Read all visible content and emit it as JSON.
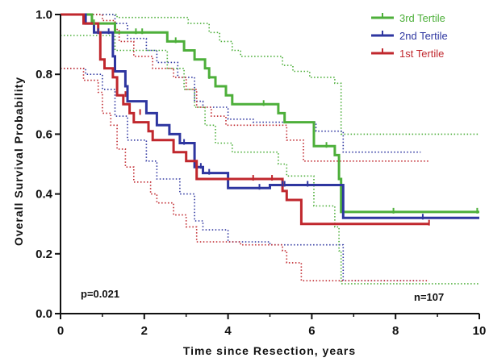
{
  "chart_data": {
    "type": "line",
    "subtype": "kaplan-meier-step",
    "title": "",
    "xlabel": "Time since Resection, years",
    "ylabel": "Overall Survival Probability",
    "xlim": [
      0,
      10
    ],
    "ylim": [
      0,
      1
    ],
    "xticks": [
      "0",
      "2",
      "4",
      "6",
      "8",
      "10"
    ],
    "yticks": [
      "0.0",
      "0.2",
      "0.4",
      "0.6",
      "0.8",
      "1.0"
    ],
    "grid": false,
    "legend_position": "top-right",
    "annotations": {
      "pvalue": "p=0.021",
      "n": "n=107"
    },
    "series": [
      {
        "name": "3rd Tertile",
        "color": "#4daf3a",
        "survival": [
          [
            0,
            1.0
          ],
          [
            0.75,
            1.0
          ],
          [
            0.75,
            0.97
          ],
          [
            1.3,
            0.97
          ],
          [
            1.3,
            0.94
          ],
          [
            2.55,
            0.94
          ],
          [
            2.55,
            0.91
          ],
          [
            2.95,
            0.91
          ],
          [
            2.95,
            0.88
          ],
          [
            3.2,
            0.88
          ],
          [
            3.2,
            0.85
          ],
          [
            3.45,
            0.85
          ],
          [
            3.45,
            0.82
          ],
          [
            3.55,
            0.82
          ],
          [
            3.55,
            0.79
          ],
          [
            3.7,
            0.79
          ],
          [
            3.7,
            0.76
          ],
          [
            3.95,
            0.76
          ],
          [
            3.95,
            0.73
          ],
          [
            4.1,
            0.73
          ],
          [
            4.1,
            0.7
          ],
          [
            5.2,
            0.7
          ],
          [
            5.2,
            0.67
          ],
          [
            5.35,
            0.67
          ],
          [
            5.35,
            0.64
          ],
          [
            6.05,
            0.64
          ],
          [
            6.05,
            0.56
          ],
          [
            6.55,
            0.56
          ],
          [
            6.55,
            0.53
          ],
          [
            6.65,
            0.53
          ],
          [
            6.65,
            0.45
          ],
          [
            6.7,
            0.45
          ],
          [
            6.7,
            0.34
          ],
          [
            10,
            0.34
          ]
        ],
        "ci_upper": [
          [
            0,
            1.0
          ],
          [
            1.35,
            1.0
          ],
          [
            1.35,
            0.99
          ],
          [
            3.05,
            0.99
          ],
          [
            3.05,
            0.97
          ],
          [
            3.55,
            0.97
          ],
          [
            3.55,
            0.94
          ],
          [
            3.8,
            0.94
          ],
          [
            3.8,
            0.91
          ],
          [
            4.1,
            0.91
          ],
          [
            4.1,
            0.88
          ],
          [
            4.3,
            0.88
          ],
          [
            4.3,
            0.86
          ],
          [
            5.3,
            0.86
          ],
          [
            5.3,
            0.83
          ],
          [
            5.55,
            0.83
          ],
          [
            5.55,
            0.81
          ],
          [
            5.95,
            0.81
          ],
          [
            5.95,
            0.79
          ],
          [
            6.55,
            0.79
          ],
          [
            6.55,
            0.77
          ],
          [
            6.7,
            0.77
          ],
          [
            6.7,
            0.6
          ],
          [
            10,
            0.6
          ]
        ],
        "ci_lower": [
          [
            0,
            0.93
          ],
          [
            1.3,
            0.93
          ],
          [
            1.3,
            0.88
          ],
          [
            2.55,
            0.88
          ],
          [
            2.55,
            0.82
          ],
          [
            2.95,
            0.82
          ],
          [
            2.95,
            0.75
          ],
          [
            3.2,
            0.75
          ],
          [
            3.2,
            0.69
          ],
          [
            3.45,
            0.69
          ],
          [
            3.45,
            0.63
          ],
          [
            3.7,
            0.63
          ],
          [
            3.7,
            0.57
          ],
          [
            4.1,
            0.57
          ],
          [
            4.1,
            0.54
          ],
          [
            5.2,
            0.54
          ],
          [
            5.2,
            0.5
          ],
          [
            5.4,
            0.5
          ],
          [
            5.4,
            0.46
          ],
          [
            6.05,
            0.46
          ],
          [
            6.05,
            0.36
          ],
          [
            6.55,
            0.36
          ],
          [
            6.55,
            0.29
          ],
          [
            6.65,
            0.29
          ],
          [
            6.65,
            0.21
          ],
          [
            6.7,
            0.21
          ],
          [
            6.7,
            0.1
          ],
          [
            10,
            0.1
          ]
        ]
      },
      {
        "name": "2nd Tertile",
        "color": "#2e36a0",
        "survival": [
          [
            0,
            1.0
          ],
          [
            0.6,
            1.0
          ],
          [
            0.6,
            0.97
          ],
          [
            0.8,
            0.97
          ],
          [
            0.8,
            0.94
          ],
          [
            1.25,
            0.94
          ],
          [
            1.25,
            0.86
          ],
          [
            1.3,
            0.86
          ],
          [
            1.3,
            0.81
          ],
          [
            1.55,
            0.81
          ],
          [
            1.55,
            0.76
          ],
          [
            1.6,
            0.76
          ],
          [
            1.6,
            0.71
          ],
          [
            2.05,
            0.71
          ],
          [
            2.05,
            0.67
          ],
          [
            2.3,
            0.67
          ],
          [
            2.3,
            0.63
          ],
          [
            2.6,
            0.63
          ],
          [
            2.6,
            0.6
          ],
          [
            2.85,
            0.6
          ],
          [
            2.85,
            0.57
          ],
          [
            3.2,
            0.57
          ],
          [
            3.2,
            0.49
          ],
          [
            3.4,
            0.49
          ],
          [
            3.4,
            0.47
          ],
          [
            4.0,
            0.47
          ],
          [
            4.0,
            0.42
          ],
          [
            5.0,
            0.42
          ],
          [
            5.0,
            0.43
          ],
          [
            6.75,
            0.43
          ],
          [
            6.75,
            0.32
          ],
          [
            10,
            0.32
          ]
        ],
        "ci_upper": [
          [
            0,
            1.0
          ],
          [
            1.3,
            1.0
          ],
          [
            1.3,
            0.97
          ],
          [
            1.6,
            0.97
          ],
          [
            1.6,
            0.92
          ],
          [
            2.05,
            0.92
          ],
          [
            2.05,
            0.88
          ],
          [
            2.3,
            0.88
          ],
          [
            2.3,
            0.84
          ],
          [
            2.8,
            0.84
          ],
          [
            2.8,
            0.79
          ],
          [
            3.2,
            0.79
          ],
          [
            3.2,
            0.71
          ],
          [
            3.4,
            0.71
          ],
          [
            3.4,
            0.69
          ],
          [
            4.0,
            0.69
          ],
          [
            4.0,
            0.65
          ],
          [
            4.6,
            0.65
          ],
          [
            4.6,
            0.64
          ],
          [
            6.1,
            0.64
          ],
          [
            6.1,
            0.61
          ],
          [
            6.75,
            0.61
          ],
          [
            6.75,
            0.54
          ],
          [
            8.6,
            0.54
          ]
        ],
        "ci_lower": [
          [
            0,
            0.82
          ],
          [
            0.6,
            0.82
          ],
          [
            0.6,
            0.8
          ],
          [
            1.0,
            0.8
          ],
          [
            1.0,
            0.75
          ],
          [
            1.3,
            0.75
          ],
          [
            1.3,
            0.66
          ],
          [
            1.6,
            0.66
          ],
          [
            1.6,
            0.58
          ],
          [
            2.05,
            0.58
          ],
          [
            2.05,
            0.51
          ],
          [
            2.3,
            0.51
          ],
          [
            2.3,
            0.45
          ],
          [
            2.85,
            0.45
          ],
          [
            2.85,
            0.4
          ],
          [
            3.2,
            0.4
          ],
          [
            3.2,
            0.31
          ],
          [
            3.4,
            0.31
          ],
          [
            3.4,
            0.28
          ],
          [
            4.0,
            0.28
          ],
          [
            4.0,
            0.24
          ],
          [
            5.0,
            0.24
          ],
          [
            5.0,
            0.23
          ],
          [
            6.75,
            0.23
          ],
          [
            6.75,
            0.11
          ],
          [
            8.6,
            0.11
          ]
        ]
      },
      {
        "name": "1st Tertile",
        "color": "#c0272d",
        "survival": [
          [
            0,
            1.0
          ],
          [
            0.55,
            1.0
          ],
          [
            0.55,
            0.97
          ],
          [
            0.9,
            0.97
          ],
          [
            0.9,
            0.94
          ],
          [
            0.95,
            0.94
          ],
          [
            0.95,
            0.85
          ],
          [
            1.05,
            0.85
          ],
          [
            1.05,
            0.82
          ],
          [
            1.25,
            0.82
          ],
          [
            1.25,
            0.79
          ],
          [
            1.35,
            0.79
          ],
          [
            1.35,
            0.73
          ],
          [
            1.5,
            0.73
          ],
          [
            1.5,
            0.7
          ],
          [
            1.65,
            0.7
          ],
          [
            1.65,
            0.67
          ],
          [
            1.75,
            0.67
          ],
          [
            1.75,
            0.64
          ],
          [
            2.1,
            0.64
          ],
          [
            2.1,
            0.61
          ],
          [
            2.2,
            0.61
          ],
          [
            2.2,
            0.58
          ],
          [
            2.7,
            0.58
          ],
          [
            2.7,
            0.54
          ],
          [
            3.0,
            0.54
          ],
          [
            3.0,
            0.51
          ],
          [
            3.25,
            0.51
          ],
          [
            3.25,
            0.45
          ],
          [
            5.3,
            0.45
          ],
          [
            5.3,
            0.41
          ],
          [
            5.4,
            0.41
          ],
          [
            5.4,
            0.38
          ],
          [
            5.75,
            0.38
          ],
          [
            5.75,
            0.3
          ],
          [
            8.8,
            0.3
          ]
        ],
        "ci_upper": [
          [
            0,
            1.0
          ],
          [
            1.0,
            1.0
          ],
          [
            1.0,
            0.98
          ],
          [
            1.3,
            0.98
          ],
          [
            1.3,
            0.95
          ],
          [
            1.4,
            0.95
          ],
          [
            1.4,
            0.91
          ],
          [
            1.75,
            0.91
          ],
          [
            1.75,
            0.86
          ],
          [
            2.2,
            0.86
          ],
          [
            2.2,
            0.82
          ],
          [
            2.7,
            0.82
          ],
          [
            2.7,
            0.79
          ],
          [
            3.0,
            0.79
          ],
          [
            3.0,
            0.75
          ],
          [
            3.25,
            0.75
          ],
          [
            3.25,
            0.69
          ],
          [
            3.6,
            0.69
          ],
          [
            3.6,
            0.66
          ],
          [
            3.95,
            0.66
          ],
          [
            3.95,
            0.63
          ],
          [
            5.4,
            0.63
          ],
          [
            5.4,
            0.58
          ],
          [
            5.8,
            0.58
          ],
          [
            5.8,
            0.51
          ],
          [
            8.8,
            0.51
          ]
        ],
        "ci_lower": [
          [
            0,
            0.82
          ],
          [
            0.55,
            0.82
          ],
          [
            0.55,
            0.78
          ],
          [
            0.9,
            0.78
          ],
          [
            0.9,
            0.74
          ],
          [
            1.0,
            0.74
          ],
          [
            1.0,
            0.67
          ],
          [
            1.2,
            0.67
          ],
          [
            1.2,
            0.63
          ],
          [
            1.35,
            0.63
          ],
          [
            1.35,
            0.55
          ],
          [
            1.55,
            0.55
          ],
          [
            1.55,
            0.49
          ],
          [
            1.75,
            0.49
          ],
          [
            1.75,
            0.44
          ],
          [
            2.15,
            0.44
          ],
          [
            2.15,
            0.4
          ],
          [
            2.3,
            0.4
          ],
          [
            2.3,
            0.37
          ],
          [
            2.7,
            0.37
          ],
          [
            2.7,
            0.33
          ],
          [
            3.0,
            0.33
          ],
          [
            3.0,
            0.29
          ],
          [
            3.25,
            0.29
          ],
          [
            3.25,
            0.24
          ],
          [
            4.3,
            0.24
          ],
          [
            4.3,
            0.23
          ],
          [
            5.3,
            0.23
          ],
          [
            5.3,
            0.21
          ],
          [
            5.4,
            0.21
          ],
          [
            5.4,
            0.17
          ],
          [
            5.75,
            0.17
          ],
          [
            5.75,
            0.11
          ],
          [
            8.8,
            0.11
          ]
        ]
      }
    ],
    "censor_marks": {
      "3rd Tertile": [
        [
          0.8,
          0.97
        ],
        [
          1.95,
          0.94
        ],
        [
          1.8,
          0.94
        ],
        [
          2.75,
          0.91
        ],
        [
          3.55,
          0.79
        ],
        [
          4.85,
          0.7
        ],
        [
          6.35,
          0.56
        ],
        [
          7.95,
          0.34
        ],
        [
          9.95,
          0.34
        ]
      ],
      "2nd Tertile": [
        [
          0.9,
          0.94
        ],
        [
          1.15,
          0.94
        ],
        [
          2.95,
          0.57
        ],
        [
          3.35,
          0.49
        ],
        [
          3.55,
          0.47
        ],
        [
          4.75,
          0.42
        ],
        [
          5.3,
          0.43
        ],
        [
          5.35,
          0.43
        ],
        [
          5.9,
          0.43
        ],
        [
          8.65,
          0.32
        ]
      ],
      "1st Tertile": [
        [
          1.55,
          0.73
        ],
        [
          1.9,
          0.67
        ],
        [
          4.6,
          0.45
        ],
        [
          5.05,
          0.45
        ],
        [
          8.8,
          0.3
        ]
      ]
    }
  }
}
